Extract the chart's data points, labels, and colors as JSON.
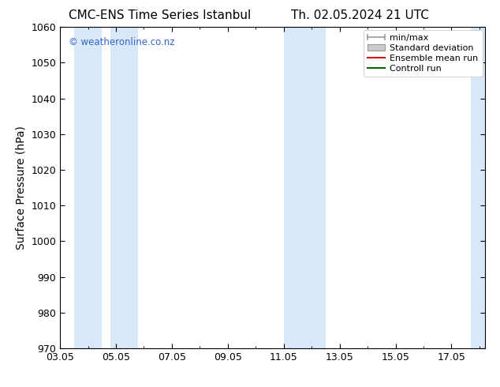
{
  "title_left": "CMC-ENS Time Series Istanbul",
  "title_right": "Th. 02.05.2024 21 UTC",
  "ylabel": "Surface Pressure (hPa)",
  "xlabel_ticks": [
    "03.05",
    "05.05",
    "07.05",
    "09.05",
    "11.05",
    "13.05",
    "15.05",
    "17.05"
  ],
  "xtick_positions": [
    0,
    2,
    4,
    6,
    8,
    10,
    12,
    14
  ],
  "xlim": [
    0,
    15.2
  ],
  "ylim": [
    970,
    1060
  ],
  "yticks": [
    970,
    980,
    990,
    1000,
    1010,
    1020,
    1030,
    1040,
    1050,
    1060
  ],
  "shaded_bands": [
    {
      "x_start": 0.5,
      "x_end": 1.5
    },
    {
      "x_start": 1.8,
      "x_end": 2.8
    },
    {
      "x_start": 8.0,
      "x_end": 9.5
    },
    {
      "x_start": 14.7,
      "x_end": 15.2
    }
  ],
  "shaded_color": "#d8e8f8",
  "background_color": "#ffffff",
  "watermark_text": "© weatheronline.co.nz",
  "watermark_color": "#3366cc",
  "title_fontsize": 11,
  "axis_label_fontsize": 10,
  "tick_fontsize": 9,
  "legend_fontsize": 8
}
